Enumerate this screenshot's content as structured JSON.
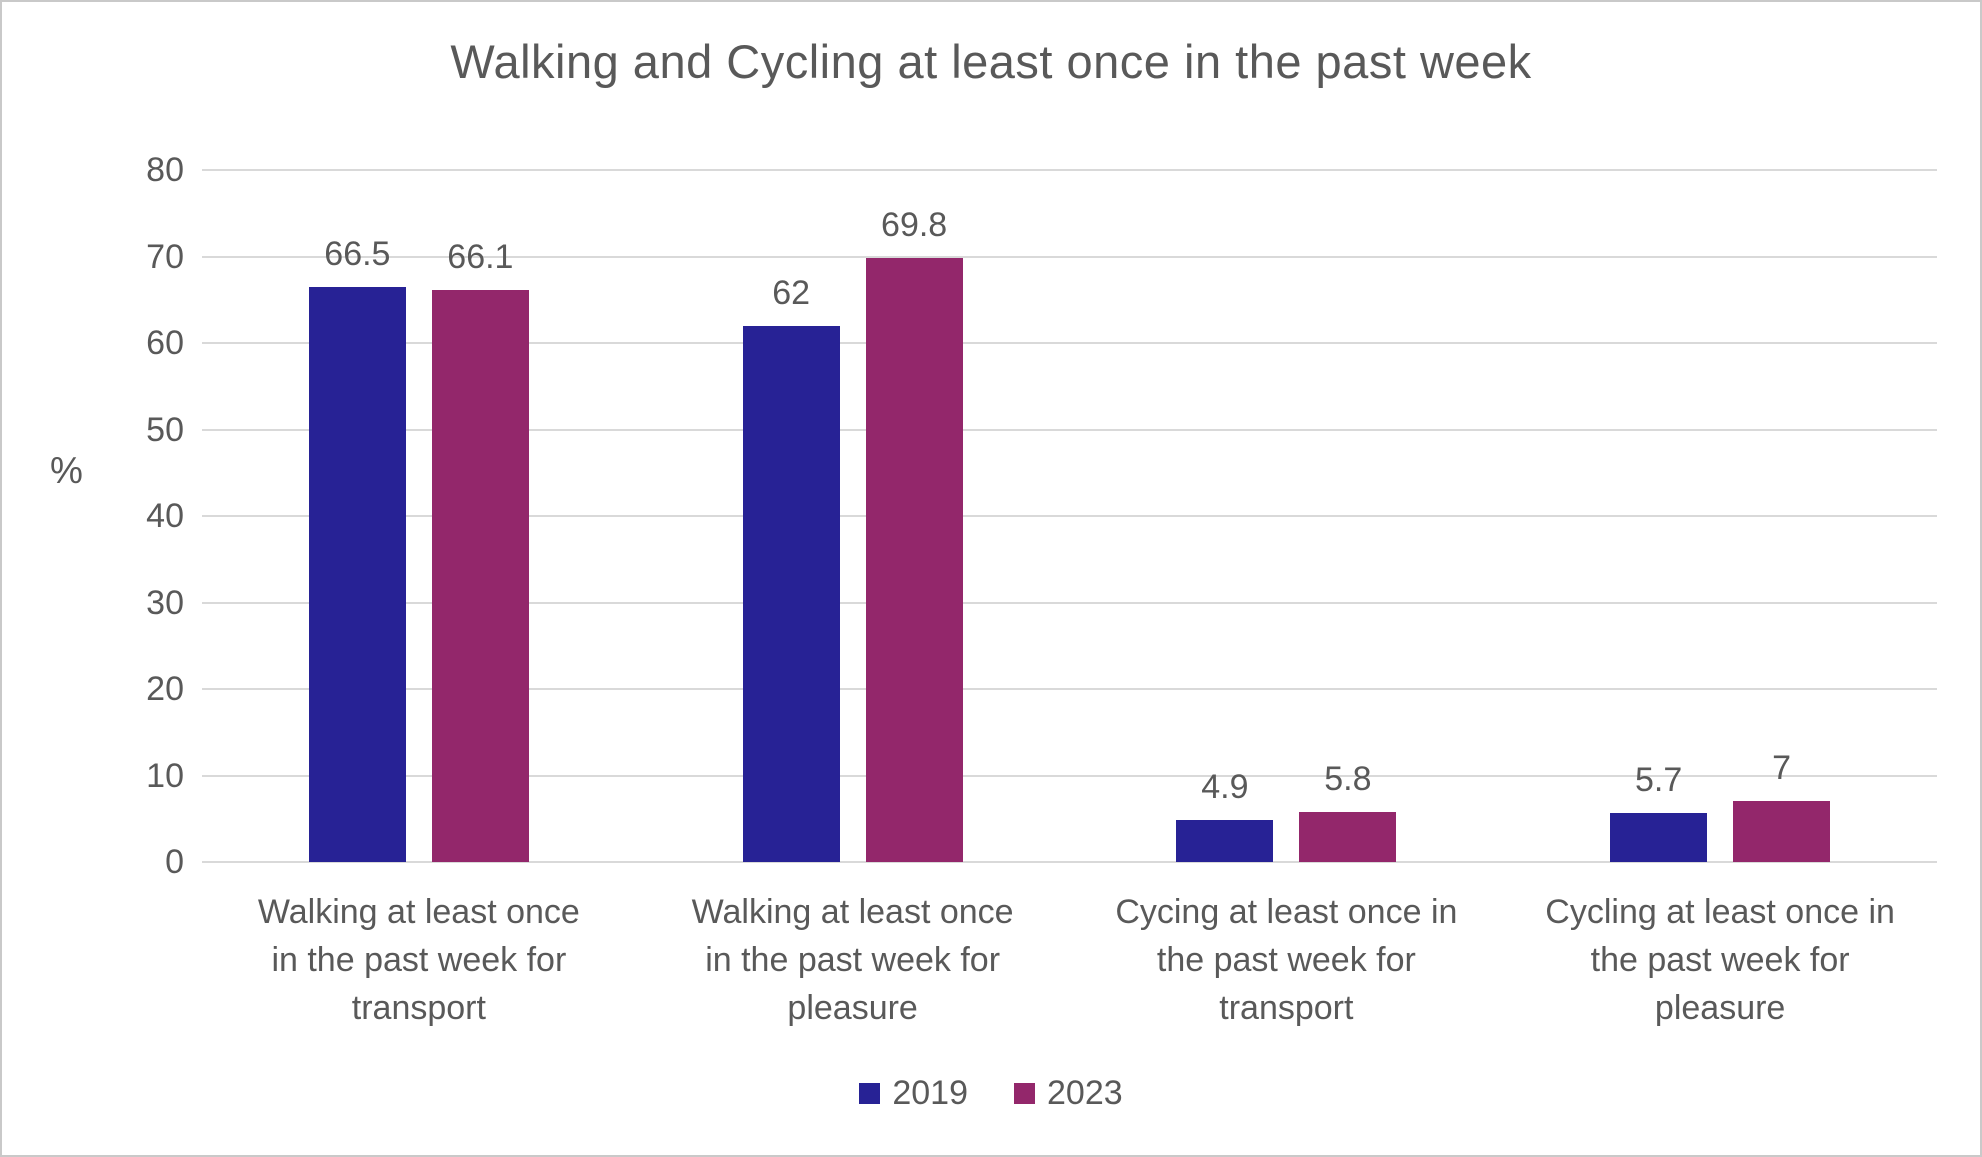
{
  "title": "Walking and Cycling at least once in the past week",
  "colors": {
    "series_2019": "#272295",
    "series_2023": "#93276B",
    "gridline": "#D9D9D9",
    "text": "#595959",
    "border": "#C9C9C9",
    "background": "#FFFFFF"
  },
  "chart_data": {
    "type": "bar",
    "title": "Walking and Cycling at least once in the past week",
    "xlabel": "",
    "ylabel": "%",
    "ylim": [
      0,
      80
    ],
    "yticks": [
      0,
      10,
      20,
      30,
      40,
      50,
      60,
      70,
      80
    ],
    "grid": true,
    "legend_position": "bottom",
    "categories": [
      "Walking at least once in the past week for transport",
      "Walking at least once in the past week for pleasure",
      "Cycing at least once in the past week for transport",
      "Cycling at least once in the past week for pleasure"
    ],
    "category_lines": [
      [
        "Walking at least once",
        "in the past week for",
        "transport"
      ],
      [
        "Walking at least once",
        "in the past week for",
        "pleasure"
      ],
      [
        "Cycing at least once in",
        "the past week for",
        "transport"
      ],
      [
        "Cycling at least once in",
        "the past week for",
        "pleasure"
      ]
    ],
    "series": [
      {
        "name": "2019",
        "color": "#272295",
        "values": [
          66.5,
          62,
          4.9,
          5.7
        ]
      },
      {
        "name": "2023",
        "color": "#93276B",
        "values": [
          66.1,
          69.8,
          5.8,
          7
        ]
      }
    ]
  }
}
